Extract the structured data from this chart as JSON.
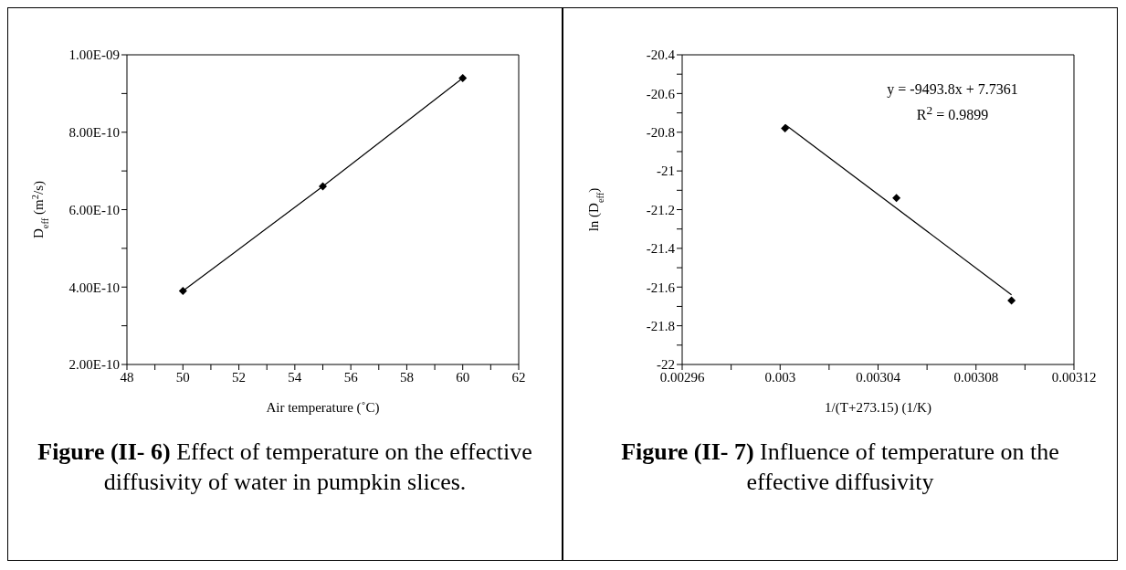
{
  "chart_data": [
    {
      "type": "line",
      "title": "Figure (II- 6)",
      "subtitle": "Effect of temperature on the effective diffusivity of water in pumpkin slices.",
      "xlabel": "Air temperature (˚C)",
      "ylabel": "D$_{eff}$ (m$^{2}$/s)",
      "series": [
        {
          "color": "#000000",
          "marker": "diamond",
          "x": [
            50,
            55,
            60
          ],
          "values": [
            3.9e-10,
            6.6e-10,
            9.4e-10
          ]
        }
      ],
      "xlim": [
        48,
        62
      ],
      "xticks": [
        48,
        {
          "value": 49,
          "label": null
        },
        50,
        {
          "value": 51,
          "label": null
        },
        52,
        {
          "value": 53,
          "label": null
        },
        54,
        {
          "value": 55,
          "label": null
        },
        56,
        {
          "value": 57,
          "label": null
        },
        58,
        {
          "value": 59,
          "label": null
        },
        60,
        {
          "value": 61,
          "label": null
        },
        62
      ],
      "ylim": [
        2e-10,
        1e-09
      ],
      "yticks": [
        {
          "value": 2e-10,
          "label": "2.00E-10"
        },
        {
          "value": 3e-10,
          "label": null
        },
        {
          "value": 4e-10,
          "label": "4.00E-10"
        },
        {
          "value": 5e-10,
          "label": null
        },
        {
          "value": 6e-10,
          "label": "6.00E-10"
        },
        {
          "value": 7e-10,
          "label": null
        },
        {
          "value": 8e-10,
          "label": "8.00E-10"
        },
        {
          "value": 9e-10,
          "label": null
        },
        {
          "value": 1e-09,
          "label": "1.00E-09"
        }
      ]
    },
    {
      "type": "scatter",
      "title": "Figure (II- 7)",
      "subtitle": "Influence of temperature on the effective diffusivity",
      "xlabel": "1/(T+273.15) (1/K)",
      "ylabel": "ln (D$_{eff}$)",
      "annotations": [
        "y = -9493.8x + 7.7361",
        "R$^{2}$ = 0.9899"
      ],
      "series": [
        {
          "color": "#000000",
          "marker": "diamond",
          "x": [
            0.003002,
            0.0030475,
            0.0030945
          ],
          "values": [
            -20.78,
            -21.14,
            -21.67
          ]
        },
        {
          "type": "line",
          "color": "#000000",
          "marker": "none",
          "x": [
            0.003002,
            0.0030945
          ],
          "values": [
            -20.76,
            -21.64
          ]
        }
      ],
      "xlim": [
        0.00296,
        0.00312
      ],
      "xticks": [
        0.00296,
        {
          "value": 0.00298,
          "label": null
        },
        0.003,
        {
          "value": 0.00302,
          "label": null
        },
        0.00304,
        {
          "value": 0.00306,
          "label": null
        },
        0.00308,
        {
          "value": 0.0031,
          "label": null
        },
        0.00312
      ],
      "ylim": [
        -22,
        -20.4
      ],
      "yticks": [
        -22,
        {
          "value": -21.9,
          "label": null
        },
        -21.8,
        {
          "value": -21.7,
          "label": null
        },
        -21.6,
        {
          "value": -21.5,
          "label": null
        },
        -21.4,
        {
          "value": -21.3,
          "label": null
        },
        -21.2,
        {
          "value": -21.1,
          "label": null
        },
        -21,
        {
          "value": -20.9,
          "label": null
        },
        -20.8,
        {
          "value": -20.7,
          "label": null
        },
        -20.6,
        {
          "value": -20.5,
          "label": null
        },
        -20.4
      ]
    }
  ]
}
